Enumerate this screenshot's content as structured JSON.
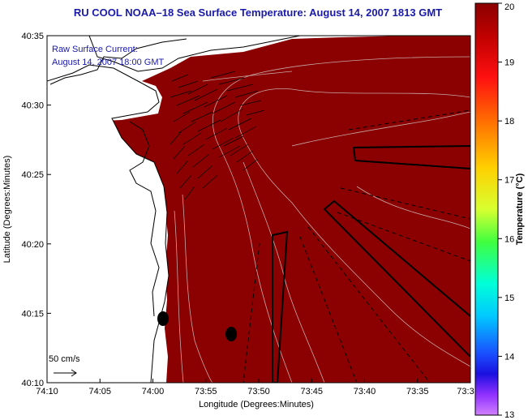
{
  "chart_data": {
    "type": "heatmap",
    "title": "RU COOL  NOAA–18  Sea Surface Temperature:  August 14, 2007 1813 GMT",
    "xlabel": "Longitude (Degrees:Minutes)",
    "ylabel": "Latitude (Degrees:Minutes)",
    "x_ticks": [
      "74:10",
      "74:05",
      "74:00",
      "73:55",
      "73:50",
      "73:45",
      "73:40",
      "73:35",
      "73:3"
    ],
    "y_ticks": [
      "40:35",
      "40:30",
      "40:25",
      "40:20",
      "40:15",
      "40:10"
    ],
    "colorbar": {
      "label": "Temperature (°C)",
      "ticks": [
        "20",
        "19",
        "18",
        "17",
        "16",
        "15",
        "14",
        "13"
      ],
      "range": [
        13,
        20
      ]
    },
    "annotation": {
      "line1": "Raw Surface Current:",
      "line2": "August 14, 2007 18:00 GMT"
    },
    "scale_label": "50 cm/s",
    "colors": {
      "sst": "#8b0000",
      "land": "#ffffff",
      "title": "#1a1aa8"
    }
  }
}
